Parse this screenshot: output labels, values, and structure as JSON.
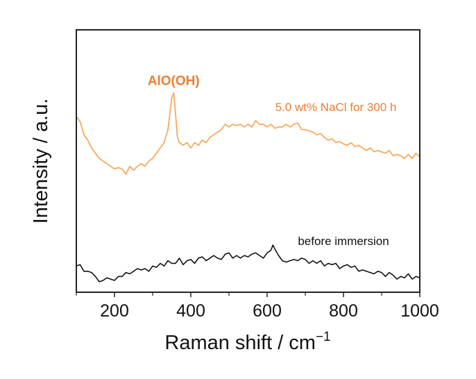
{
  "chart_data": {
    "type": "line",
    "title": "",
    "xlabel": "Raman shift / cm",
    "xlabel_superscript": "−1",
    "ylabel": "Intensity / a.u.",
    "xlim": [
      100,
      1000
    ],
    "ylim": [
      0,
      100
    ],
    "grid": false,
    "x_ticks_major": [
      200,
      400,
      600,
      800,
      1000
    ],
    "x_ticks_minor": [
      100,
      300,
      500,
      700,
      900
    ],
    "x_tick_labels": [
      "200",
      "400",
      "600",
      "800",
      "1000"
    ],
    "annotations": [
      {
        "text": "AlO(OH)",
        "x": 355,
        "y": 79,
        "color": "#ED7D31",
        "bold": true
      },
      {
        "text": "5.0 wt% NaCl for 300 h",
        "x": 780,
        "y": 69,
        "color": "#ED7D31",
        "bold": false
      },
      {
        "text": "before immersion",
        "x": 800,
        "y": 18,
        "color": "#111111",
        "bold": false
      }
    ],
    "series": [
      {
        "name": "5.0 wt% NaCl for 300 h",
        "color": "#F7A95C",
        "x": [
          100,
          110,
          120,
          130,
          140,
          150,
          160,
          170,
          180,
          190,
          200,
          210,
          220,
          230,
          240,
          250,
          260,
          270,
          280,
          290,
          300,
          310,
          320,
          330,
          340,
          345,
          350,
          355,
          360,
          365,
          370,
          380,
          390,
          400,
          410,
          420,
          430,
          440,
          450,
          460,
          470,
          480,
          490,
          500,
          510,
          520,
          530,
          540,
          550,
          560,
          570,
          580,
          590,
          600,
          610,
          620,
          630,
          640,
          650,
          660,
          670,
          680,
          690,
          700,
          710,
          720,
          730,
          740,
          750,
          760,
          770,
          780,
          790,
          800,
          810,
          820,
          830,
          840,
          850,
          860,
          870,
          880,
          890,
          900,
          910,
          920,
          930,
          940,
          950,
          960,
          970,
          980,
          990,
          1000
        ],
        "y": [
          67,
          65,
          60,
          58,
          55,
          53,
          51,
          50,
          49,
          48,
          47,
          47.5,
          47,
          45,
          48,
          46.5,
          48,
          49,
          48,
          50,
          51,
          53,
          55,
          57,
          62,
          68,
          74,
          76,
          68,
          59,
          57,
          56,
          57,
          55,
          57,
          56,
          58,
          57,
          59,
          60,
          61,
          62,
          64,
          63,
          64,
          63.5,
          64,
          63,
          64,
          63,
          65.5,
          64,
          64,
          63,
          64,
          62.5,
          63,
          63,
          64,
          63,
          64,
          64.5,
          62,
          62,
          61.5,
          61,
          60,
          60.5,
          59,
          58,
          58.5,
          57,
          57.5,
          56.5,
          56,
          57,
          55.5,
          56,
          55,
          54,
          55,
          53.5,
          54,
          53.5,
          53,
          54,
          52,
          52.5,
          52,
          51,
          52.5,
          51,
          53,
          51.5
        ]
      },
      {
        "name": "before immersion",
        "color": "#111111",
        "x": [
          100,
          110,
          120,
          130,
          140,
          150,
          160,
          170,
          180,
          190,
          200,
          210,
          220,
          230,
          240,
          250,
          260,
          270,
          280,
          290,
          300,
          310,
          320,
          330,
          340,
          350,
          360,
          370,
          380,
          390,
          400,
          410,
          420,
          430,
          440,
          450,
          460,
          470,
          480,
          490,
          500,
          510,
          520,
          530,
          540,
          550,
          560,
          570,
          580,
          590,
          600,
          610,
          615,
          620,
          630,
          640,
          650,
          660,
          670,
          680,
          690,
          700,
          710,
          720,
          730,
          740,
          750,
          760,
          770,
          780,
          790,
          800,
          810,
          820,
          830,
          840,
          850,
          860,
          870,
          880,
          890,
          900,
          910,
          920,
          930,
          940,
          950,
          960,
          970,
          980,
          990,
          1000
        ],
        "y": [
          10,
          10.5,
          8,
          8,
          7.5,
          6,
          4,
          4.5,
          5.5,
          5,
          4.5,
          6,
          6,
          7.5,
          7,
          8,
          9,
          8.5,
          9,
          8,
          10,
          9.5,
          11,
          10,
          12,
          11,
          11,
          13,
          10.5,
          12,
          12.5,
          11,
          13,
          13.5,
          12,
          13,
          14,
          13,
          12.5,
          14.5,
          15,
          13,
          14,
          13,
          14,
          13.5,
          14.5,
          15,
          14,
          13,
          15,
          16,
          18,
          16.5,
          14,
          12,
          11.5,
          12,
          12.5,
          12,
          13,
          12.5,
          11,
          12,
          11,
          12,
          10,
          11,
          10.5,
          11,
          9,
          10,
          10.5,
          9.5,
          10,
          8,
          8.5,
          8,
          7.5,
          7,
          8,
          7.5,
          6,
          7.5,
          6.5,
          5,
          6,
          5.5,
          7,
          5,
          6,
          5.5
        ]
      }
    ]
  }
}
